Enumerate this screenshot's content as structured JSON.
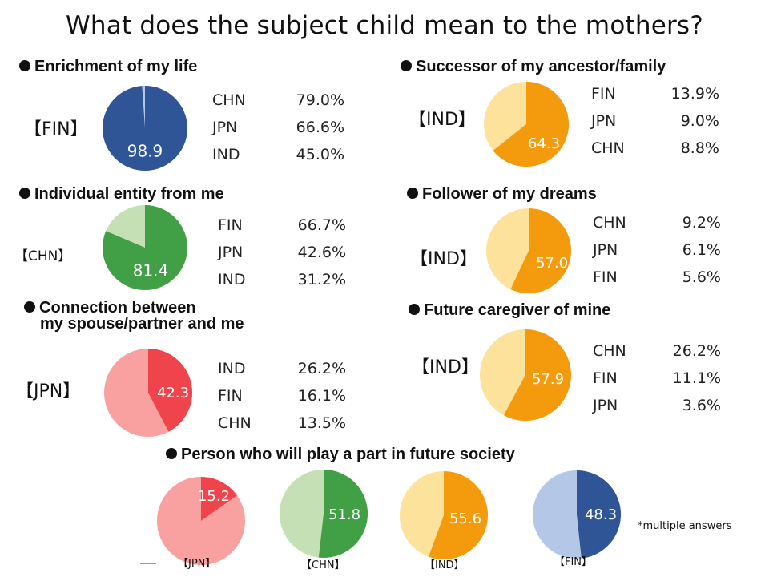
{
  "title": "What does the subject child mean to the mothers?",
  "note": "*multiple answers",
  "chart_data": [
    {
      "type": "pie",
      "title": "Enrichment of my life",
      "country": "【FIN】",
      "value": 98.9,
      "label": "98.9",
      "colors": [
        "#2f5597",
        "#b4c7e7"
      ],
      "ranking": [
        {
          "country": "CHN",
          "value": "79.0%"
        },
        {
          "country": "JPN",
          "value": "66.6%"
        },
        {
          "country": "IND",
          "value": "45.0%"
        }
      ]
    },
    {
      "type": "pie",
      "title": "Successor of my ancestor/family",
      "country": "【IND】",
      "value": 64.3,
      "label": "64.3",
      "colors": [
        "#f39a0d",
        "#fde29c"
      ],
      "ranking": [
        {
          "country": "FIN",
          "value": "13.9%"
        },
        {
          "country": "JPN",
          "value": "9.0%"
        },
        {
          "country": "CHN",
          "value": "8.8%"
        }
      ]
    },
    {
      "type": "pie",
      "title": "Individual entity from me",
      "country": "【CHN】",
      "value": 81.4,
      "label": "81.4",
      "colors": [
        "#41a046",
        "#c5e0b4"
      ],
      "ranking": [
        {
          "country": "FIN",
          "value": "66.7%"
        },
        {
          "country": "JPN",
          "value": "42.6%"
        },
        {
          "country": "IND",
          "value": "31.2%"
        }
      ]
    },
    {
      "type": "pie",
      "title": "Follower of my dreams",
      "country": "【IND】",
      "value": 57.0,
      "label": "57.0",
      "colors": [
        "#f39a0d",
        "#fde29c"
      ],
      "ranking": [
        {
          "country": "CHN",
          "value": "9.2%"
        },
        {
          "country": "JPN",
          "value": "6.1%"
        },
        {
          "country": "FIN",
          "value": "5.6%"
        }
      ]
    },
    {
      "type": "pie",
      "title": "Connection between",
      "title2": "my spouse/partner and me",
      "country": "【JPN】",
      "value": 42.3,
      "label": "42.3",
      "colors": [
        "#f0444c",
        "#f9a0a0"
      ],
      "ranking": [
        {
          "country": "IND",
          "value": "26.2%"
        },
        {
          "country": "FIN",
          "value": "16.1%"
        },
        {
          "country": "CHN",
          "value": "13.5%"
        }
      ]
    },
    {
      "type": "pie",
      "title": "Future caregiver of mine",
      "country": "【IND】",
      "value": 57.9,
      "label": "57.9",
      "colors": [
        "#f39a0d",
        "#fde29c"
      ],
      "ranking": [
        {
          "country": "CHN",
          "value": "26.2%"
        },
        {
          "country": "FIN",
          "value": "11.1%"
        },
        {
          "country": "JPN",
          "value": "3.6%"
        }
      ]
    },
    {
      "type": "pie",
      "title": "Person who will play a part in future society",
      "series": [
        {
          "country": "【JPN】",
          "value": 15.2,
          "label": "15.2",
          "colors": [
            "#f0444c",
            "#f9a0a0"
          ]
        },
        {
          "country": "【CHN】",
          "value": 51.8,
          "label": "51.8",
          "colors": [
            "#41a046",
            "#c5e0b4"
          ]
        },
        {
          "country": "【IND】",
          "value": 55.6,
          "label": "55.6",
          "colors": [
            "#f39a0d",
            "#fde29c"
          ]
        },
        {
          "country": "【FIN】",
          "value": 48.3,
          "label": "48.3",
          "colors": [
            "#2f5597",
            "#b4c7e7"
          ]
        }
      ]
    }
  ]
}
